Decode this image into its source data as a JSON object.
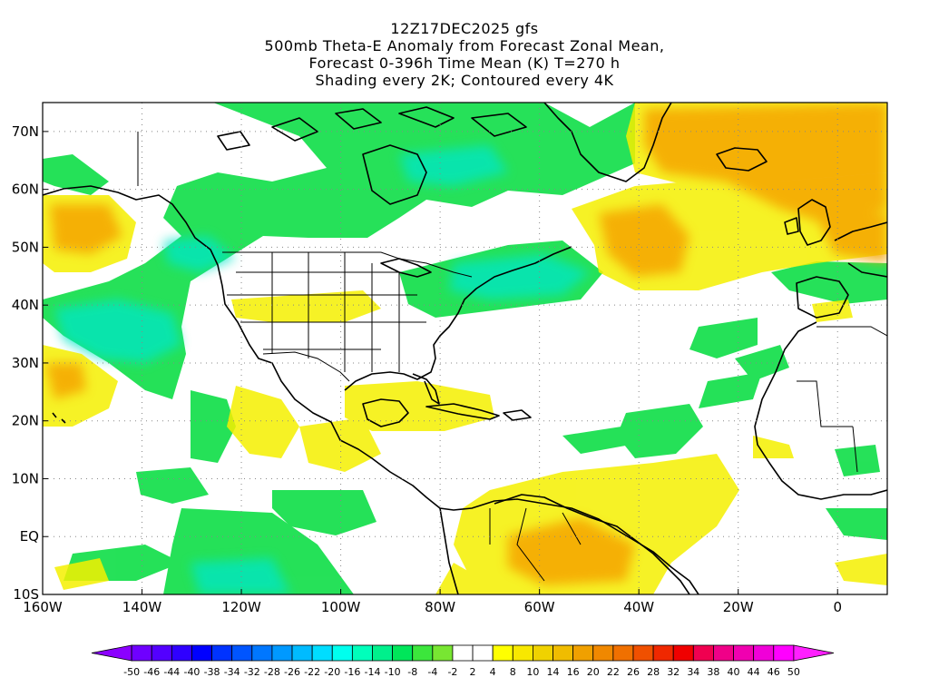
{
  "title": {
    "line1": "12Z17DEC2025 gfs",
    "line2": "500mb Theta-E Anomaly from Forecast Zonal Mean,",
    "line3": "Forecast 0-396h Time Mean (K) T=270 h",
    "line4": "Shading every 2K; Contoured every 4K"
  },
  "map": {
    "lon_range": [
      -160,
      10
    ],
    "lat_range": [
      -10,
      75
    ],
    "lat_labels": [
      "70N",
      "60N",
      "50N",
      "40N",
      "30N",
      "20N",
      "10N",
      "EQ",
      "10S"
    ],
    "lat_values": [
      70,
      60,
      50,
      40,
      30,
      20,
      10,
      0,
      -10
    ],
    "lon_labels": [
      "160W",
      "140W",
      "120W",
      "100W",
      "80W",
      "60W",
      "40W",
      "20W",
      "0"
    ],
    "lon_values": [
      -160,
      -140,
      -120,
      -100,
      -80,
      -60,
      -40,
      -20,
      0
    ],
    "grid": true,
    "grid_style": "dotted"
  },
  "colorbar": {
    "labels": [
      "-50",
      "-46",
      "-44",
      "-40",
      "-38",
      "-34",
      "-32",
      "-28",
      "-26",
      "-22",
      "-20",
      "-16",
      "-14",
      "-10",
      "-8",
      "-4",
      "-2",
      "2",
      "4",
      "8",
      "10",
      "14",
      "16",
      "20",
      "22",
      "26",
      "28",
      "32",
      "34",
      "38",
      "40",
      "44",
      "46",
      "50"
    ],
    "colors": [
      "#8b00ff",
      "#6f00ff",
      "#5300ff",
      "#2f00ff",
      "#0000ff",
      "#0033ff",
      "#0055ff",
      "#0077ff",
      "#0099ff",
      "#00bbff",
      "#00ddff",
      "#00ffee",
      "#00ffbb",
      "#00f08c",
      "#00e65a",
      "#3ce63c",
      "#78e632",
      "#ffffff",
      "#ffffff",
      "#ffff00",
      "#f8e800",
      "#f0d200",
      "#f0bc00",
      "#f0a000",
      "#f08800",
      "#f07000",
      "#f05000",
      "#f02800",
      "#f00000",
      "#f00050",
      "#f00088",
      "#f000b0",
      "#f000d8",
      "#ff00ff",
      "#ff1fff"
    ]
  },
  "fields": {
    "anomaly_regions": [
      {
        "area": "NE Pacific / N America interior",
        "sign": "negative",
        "range_K": "-10 to -4"
      },
      {
        "area": "E Canada / Labrador Sea",
        "sign": "negative",
        "range_K": "-14 to -8"
      },
      {
        "area": "N Atlantic / Europe / Iceland",
        "sign": "positive",
        "range_K": "8 to 22"
      },
      {
        "area": "Gulf of Alaska SW",
        "sign": "positive",
        "range_K": "4 to 14"
      },
      {
        "area": "Subtropical E Pacific",
        "sign": "positive",
        "range_K": "4 to 14"
      },
      {
        "area": "Caribbean / Gulf of Mexico",
        "sign": "positive",
        "range_K": "4 to 10"
      },
      {
        "area": "Tropical S America / Atlantic",
        "sign": "positive",
        "range_K": "4 to 14"
      },
      {
        "area": "Equatorial E Pacific",
        "sign": "negative",
        "range_K": "-8 to -4"
      },
      {
        "area": "Tropical N Atlantic",
        "sign": "negative",
        "range_K": "-8 to -4"
      }
    ]
  }
}
